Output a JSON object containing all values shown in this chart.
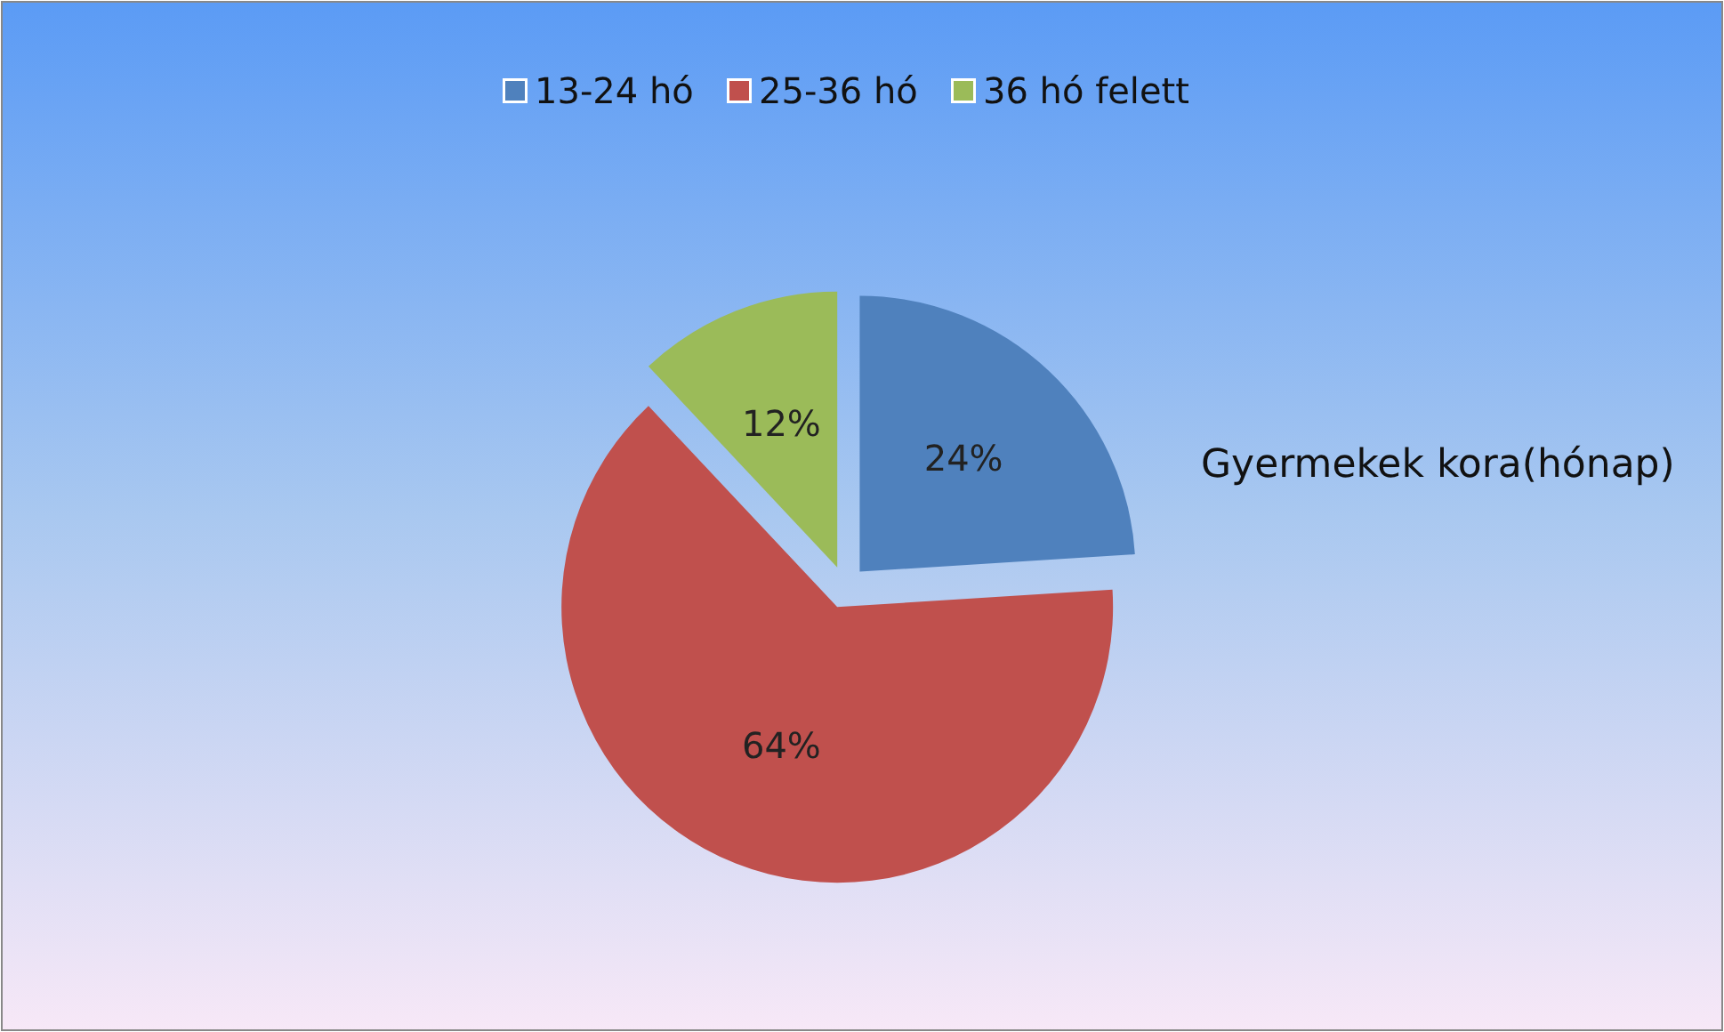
{
  "chart_data": {
    "type": "pie",
    "title": "Gyermekek kora(hónap)",
    "categories": [
      "13-24 hó",
      "25-36 hó",
      "36 hó felett"
    ],
    "values": [
      24,
      64,
      12
    ],
    "colors": [
      "#4f81bd",
      "#c0504d",
      "#9bbb59"
    ],
    "value_labels": [
      "24%",
      "64%",
      "12%"
    ],
    "legend": "top"
  }
}
